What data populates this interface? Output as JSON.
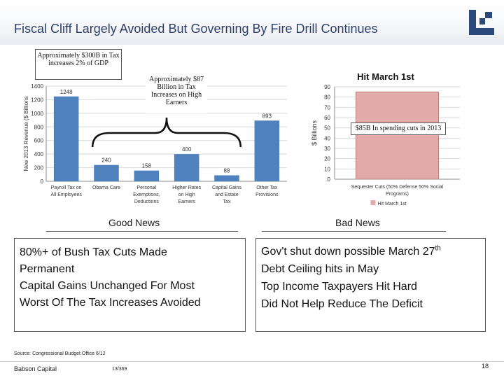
{
  "slide": {
    "title": "Fiscal Cliff Largely Avoided But Governing By Fire Drill Continues",
    "logo_icon": "babson-logo-icon"
  },
  "callouts": {
    "tax_increases": "Approximately $300B in Tax increases 2% of GDP",
    "high_earners": "Approximately $87 Billion in Tax Increases on High Earners",
    "spending_cuts": "$85B In spending cuts in 2013"
  },
  "chart_data": [
    {
      "type": "bar",
      "title": "",
      "ylabel": "New 2013 Revenue ($ Billions",
      "ylim": [
        0,
        1400
      ],
      "yticks": [
        "0",
        "200",
        "400",
        "600",
        "800",
        "1000",
        "1200",
        "1400"
      ],
      "categories": [
        [
          "Payroll Tax on",
          "All Employees"
        ],
        [
          "Obama Care"
        ],
        [
          "Personal",
          "Exemptions,",
          "Deductions"
        ],
        [
          "Higher Rates",
          "on High",
          "Earners"
        ],
        [
          "Capital Gains",
          "and Estate",
          "Tax"
        ],
        [
          "Other Tax",
          "Provisions"
        ]
      ],
      "values": [
        1248,
        240,
        158,
        400,
        88,
        893
      ],
      "data_labels": [
        "1248",
        "240",
        "158",
        "400",
        "88",
        "893"
      ],
      "bar_color": "#4f81bd"
    },
    {
      "type": "bar",
      "title": "Hit March 1st",
      "ylabel": "$ Billions",
      "ylim": [
        0,
        90
      ],
      "yticks": [
        "0",
        "10",
        "20",
        "30",
        "40",
        "50",
        "60",
        "70",
        "80",
        "90"
      ],
      "categories": [
        "Sequester Cuts (50% Defense 50% Social Programs)"
      ],
      "category_lines": [
        "Sequester Cuts (50% Defense 50% Social",
        "Programs)"
      ],
      "values": [
        85
      ],
      "legend": [
        "Hit March 1st"
      ],
      "bar_color": "#e3aaaa"
    }
  ],
  "sections": {
    "good_label": "Good News",
    "bad_label": "Bad News",
    "good_items": [
      "80%+ of Bush Tax Cuts Made",
      "Permanent",
      "Capital Gains Unchanged For Most",
      "Worst Of The Tax Increases Avoided"
    ],
    "bad_items": [
      {
        "text": "Gov't shut down possible March 27",
        "sup": "th"
      },
      {
        "text": "Debt Ceiling hits in May",
        "sup": ""
      },
      {
        "text": "Top Income Taxpayers Hit Hard",
        "sup": ""
      },
      {
        "text": "Did Not Help Reduce The Deficit",
        "sup": ""
      }
    ]
  },
  "footer": {
    "source": "Source: Congressional Budget Office 6/12",
    "company": "Babson Capital",
    "code": "13/369",
    "page_number": "18"
  },
  "colors": {
    "title": "#2b3f6b",
    "revenue_bars": "#4f81bd",
    "sequester_bar": "#e3aaaa"
  }
}
